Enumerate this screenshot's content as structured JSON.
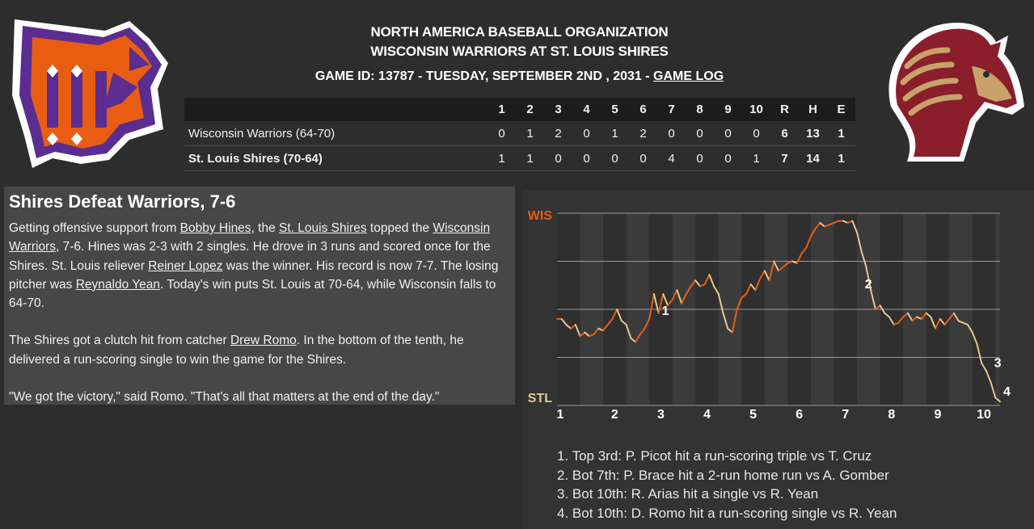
{
  "header": {
    "org": "NORTH AMERICA BASEBALL ORGANIZATION",
    "matchup": "WISCONSIN WARRIORS AT ST. LOUIS SHIRES",
    "game_id": "GAME ID: 13787 - TUESDAY, SEPTEMBER 2ND , 2031 -",
    "game_log": "GAME LOG"
  },
  "logos": {
    "away": "wisconsin-warriors-logo",
    "home": "st-louis-shires-logo",
    "away_colors": [
      "#e85d12",
      "#5b2d90",
      "#ffffff"
    ],
    "home_colors": [
      "#8b1e2b",
      "#c8a26a",
      "#ffffff"
    ]
  },
  "linescore": {
    "headers": [
      "1",
      "2",
      "3",
      "4",
      "5",
      "6",
      "7",
      "8",
      "9",
      "10",
      "R",
      "H",
      "E"
    ],
    "away": {
      "team": "Wisconsin Warriors (64-70)",
      "innings": [
        "0",
        "1",
        "2",
        "0",
        "1",
        "2",
        "0",
        "0",
        "0",
        "0"
      ],
      "r": "6",
      "h": "13",
      "e": "1"
    },
    "home": {
      "team": "St. Louis Shires (70-64)",
      "innings": [
        "1",
        "1",
        "0",
        "0",
        "0",
        "0",
        "4",
        "0",
        "0",
        "1"
      ],
      "r": "7",
      "h": "14",
      "e": "1"
    }
  },
  "story": {
    "headline": "Shires Defeat Warriors, 7-6",
    "p1": [
      "Getting offensive support from ",
      "Bobby Hines",
      ", the ",
      "St. Louis Shires",
      " topped the ",
      "Wisconsin Warriors",
      ", 7-6. Hines was 2-3 with 2 singles. He drove in 3 runs and scored once for the Shires. St. Louis reliever ",
      "Reiner Lopez",
      " was the winner. His record is now 7-7. The losing pitcher was ",
      "Reynaldo Yean",
      ". Today's win puts St. Louis at 70-64, while Wisconsin falls to 64-70."
    ],
    "p2": [
      "The Shires got a clutch hit from catcher ",
      "Drew Romo",
      ". In the bottom of the tenth, he delivered a run-scoring single to win the game for the Shires."
    ],
    "p3": "\"We got the victory,\" said Romo. \"That's all that matters at the end of the day.\""
  },
  "chart_data": {
    "type": "line",
    "title": "",
    "y_top_label": "WIS",
    "y_bottom_label": "STL",
    "x_ticks": [
      "1",
      "2",
      "3",
      "4",
      "5",
      "6",
      "7",
      "8",
      "9",
      "10"
    ],
    "ylim": [
      0,
      100
    ],
    "top_color": "#e85d12",
    "bottom_color": "#e2c98f",
    "x": [
      1,
      1.1,
      1.2,
      1.3,
      1.4,
      1.5,
      1.6,
      1.7,
      1.8,
      1.9,
      2.0,
      2.1,
      2.2,
      2.3,
      2.4,
      2.5,
      2.6,
      2.7,
      2.8,
      2.9,
      3.0,
      3.1,
      3.2,
      3.3,
      3.4,
      3.5,
      3.6,
      3.7,
      3.8,
      3.9,
      4.0,
      4.1,
      4.2,
      4.3,
      4.4,
      4.5,
      4.6,
      4.7,
      4.8,
      4.9,
      5.0,
      5.1,
      5.2,
      5.3,
      5.4,
      5.5,
      5.6,
      5.7,
      5.8,
      5.9,
      6.0,
      6.1,
      6.2,
      6.3,
      6.4,
      6.5,
      6.6,
      6.7,
      6.8,
      6.9,
      7.0,
      7.1,
      7.2,
      7.3,
      7.4,
      7.5,
      7.6,
      7.7,
      7.8,
      7.9,
      8.0,
      8.1,
      8.2,
      8.3,
      8.4,
      8.5,
      8.6,
      8.7,
      8.8,
      8.9,
      9.0,
      9.1,
      9.2,
      9.3,
      9.4,
      9.5,
      9.6,
      9.7,
      9.8,
      9.9,
      10.0,
      10.1,
      10.2,
      10.3,
      10.4,
      10.5,
      10.6
    ],
    "y": [
      45,
      45,
      42,
      40,
      42,
      36,
      38,
      36,
      37,
      40,
      39,
      42,
      45,
      50,
      44,
      42,
      35,
      33,
      37,
      40,
      45,
      58,
      48,
      58,
      52,
      55,
      60,
      53,
      58,
      62,
      65,
      62,
      63,
      68,
      62,
      58,
      48,
      40,
      38,
      50,
      56,
      58,
      63,
      60,
      66,
      70,
      65,
      75,
      70,
      72,
      74,
      75,
      74,
      79,
      82,
      88,
      92,
      95,
      93,
      94,
      95,
      96,
      96,
      95,
      96,
      90,
      80,
      72,
      60,
      50,
      52,
      48,
      46,
      42,
      43,
      46,
      48,
      44,
      46,
      45,
      48,
      46,
      40,
      45,
      42,
      45,
      48,
      44,
      43,
      42,
      38,
      32,
      22,
      18,
      12,
      4,
      2
    ],
    "labels": [
      {
        "text": "1",
        "x": 3.2,
        "y": 47
      },
      {
        "text": "2",
        "x": 7.6,
        "y": 61
      },
      {
        "text": "3",
        "x": 10.4,
        "y": 20
      },
      {
        "text": "4",
        "x": 10.6,
        "y": 5
      }
    ],
    "events": [
      "1. Top 3rd: P. Picot hit a run-scoring triple vs T. Cruz",
      "2. Bot 7th: P. Brace hit a 2-run home run vs A. Gomber",
      "3. Bot 10th: R. Arias hit a single vs R. Yean",
      "4. Bot 10th: D. Romo hit a run-scoring single vs R. Yean"
    ]
  }
}
